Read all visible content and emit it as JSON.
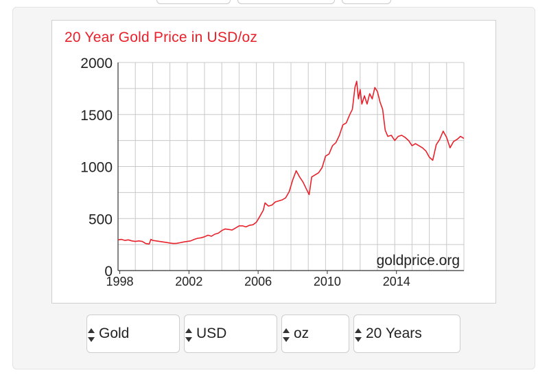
{
  "controls": {
    "metal": "Gold",
    "currency": "USD",
    "unit": "oz",
    "period": "20 Years"
  },
  "colors": {
    "line": "#e8202a",
    "grid": "#c8c8c8"
  },
  "chart_data": {
    "type": "line",
    "title": "20 Year Gold Price in USD/oz",
    "watermark": "goldprice.org",
    "xlabel": "",
    "ylabel": "",
    "xlim": [
      1997.9,
      2017.9
    ],
    "ylim": [
      0,
      2000
    ],
    "x_ticks": [
      1998,
      2002,
      2006,
      2010,
      2014
    ],
    "y_ticks": [
      0,
      500,
      1000,
      1500,
      2000
    ],
    "grid": true,
    "series": [
      {
        "x": [
          1997.9,
          1998.1,
          1998.3,
          1998.5,
          1998.7,
          1998.9,
          1999.1,
          1999.3,
          1999.5,
          1999.7,
          1999.8,
          1999.9,
          2000.1,
          2000.3,
          2000.5,
          2000.7,
          2000.9,
          2001.1,
          2001.3,
          2001.5,
          2001.7,
          2001.9,
          2002.1,
          2002.3,
          2002.5,
          2002.7,
          2002.9,
          2003.1,
          2003.3,
          2003.5,
          2003.7,
          2003.9,
          2004.1,
          2004.3,
          2004.5,
          2004.7,
          2004.9,
          2005.1,
          2005.3,
          2005.5,
          2005.7,
          2005.9,
          2006.1,
          2006.3,
          2006.4,
          2006.6,
          2006.8,
          2007.0,
          2007.2,
          2007.4,
          2007.6,
          2007.8,
          2008.0,
          2008.2,
          2008.4,
          2008.6,
          2008.8,
          2008.95,
          2009.1,
          2009.3,
          2009.5,
          2009.7,
          2009.9,
          2010.1,
          2010.3,
          2010.5,
          2010.7,
          2010.9,
          2011.1,
          2011.3,
          2011.45,
          2011.6,
          2011.7,
          2011.8,
          2011.9,
          2012.0,
          2012.15,
          2012.3,
          2012.45,
          2012.6,
          2012.75,
          2012.9,
          2013.05,
          2013.2,
          2013.35,
          2013.5,
          2013.7,
          2013.9,
          2014.1,
          2014.3,
          2014.5,
          2014.7,
          2014.9,
          2015.1,
          2015.3,
          2015.5,
          2015.7,
          2015.9,
          2016.1,
          2016.3,
          2016.5,
          2016.7,
          2016.9,
          2017.1,
          2017.3,
          2017.5,
          2017.7,
          2017.9
        ],
        "y": [
          295,
          300,
          290,
          295,
          285,
          280,
          285,
          280,
          260,
          255,
          300,
          290,
          285,
          280,
          275,
          270,
          265,
          260,
          262,
          268,
          275,
          280,
          285,
          300,
          310,
          315,
          325,
          340,
          330,
          350,
          360,
          385,
          400,
          395,
          390,
          410,
          430,
          430,
          420,
          435,
          440,
          465,
          520,
          580,
          650,
          620,
          630,
          660,
          670,
          680,
          700,
          760,
          870,
          960,
          900,
          850,
          780,
          730,
          900,
          920,
          940,
          990,
          1100,
          1120,
          1200,
          1230,
          1300,
          1400,
          1420,
          1500,
          1550,
          1760,
          1820,
          1650,
          1740,
          1600,
          1680,
          1600,
          1700,
          1650,
          1760,
          1720,
          1620,
          1550,
          1350,
          1290,
          1300,
          1250,
          1290,
          1300,
          1280,
          1250,
          1200,
          1220,
          1200,
          1180,
          1150,
          1090,
          1060,
          1210,
          1260,
          1340,
          1280,
          1180,
          1240,
          1260,
          1290,
          1270
        ],
        "color": "#e8202a"
      }
    ]
  }
}
